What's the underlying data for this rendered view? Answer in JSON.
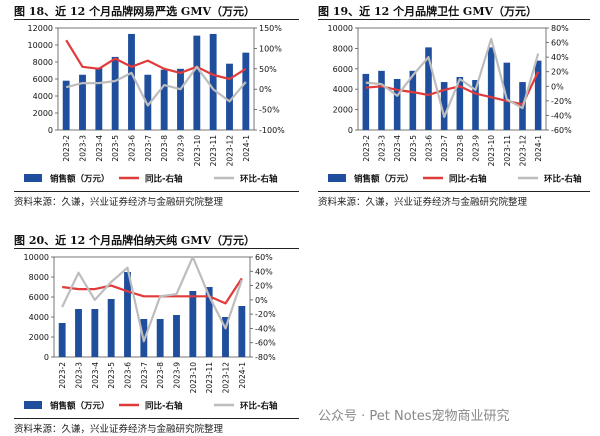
{
  "charts": [
    {
      "title": "图 18、近 12 个月品牌网易严选 GMV（万元）",
      "source": "资料来源：久谦，兴业证券经济与金融研究院整理"
    },
    {
      "title": "图 19、近 12 个月品牌卫仕 GMV（万元）",
      "source": "资料来源：久谦，兴业证券经济与金融研究院整理"
    },
    {
      "title": "图 20、近 12 个月品牌伯纳天纯 GMV（万元）",
      "source": "资料来源：久谦，兴业证券经济与金融研究院整理"
    }
  ],
  "watermark": "公众号 · Pet Notes宠物商业研究",
  "chart_data": [
    {
      "type": "bar",
      "categories": [
        "2023-2",
        "2023-3",
        "2023-4",
        "2023-5",
        "2023-6",
        "2023-7",
        "2023-8",
        "2023-9",
        "2023-10",
        "2023-11",
        "2023-12",
        "2024-1"
      ],
      "series": [
        {
          "name": "销售额（万元）",
          "axis": "left",
          "kind": "bar",
          "color": "#1f4f9c",
          "values": [
            5800,
            6500,
            7300,
            8600,
            11300,
            6500,
            7100,
            7200,
            11100,
            11300,
            7800,
            9100
          ]
        },
        {
          "name": "同比-右轴",
          "axis": "right",
          "kind": "line",
          "color": "#e03a3a",
          "values": [
            120,
            55,
            50,
            75,
            55,
            70,
            50,
            40,
            55,
            35,
            25,
            50
          ]
        },
        {
          "name": "环比-右轴",
          "axis": "right",
          "kind": "line",
          "color": "#bdbdbd",
          "values": [
            5,
            15,
            15,
            20,
            40,
            -40,
            10,
            0,
            55,
            0,
            -30,
            18
          ]
        }
      ],
      "yleft": {
        "min": 0,
        "max": 12000,
        "step": 2000,
        "ticks": [
          "0",
          "2000",
          "4000",
          "6000",
          "8000",
          "10000",
          "12000"
        ]
      },
      "yright": {
        "min": -100,
        "max": 150,
        "step": 50,
        "ticks": [
          "-100%",
          "-50%",
          "0%",
          "50%",
          "100%",
          "150%"
        ]
      },
      "legend": "bottom"
    },
    {
      "type": "bar",
      "categories": [
        "2023-2",
        "2023-3",
        "2023-4",
        "2023-5",
        "2023-6",
        "2023-7",
        "2023-8",
        "2023-9",
        "2023-10",
        "2023-11",
        "2023-12",
        "2024-1"
      ],
      "series": [
        {
          "name": "销售额（万元）",
          "axis": "left",
          "kind": "bar",
          "color": "#1f4f9c",
          "values": [
            5500,
            5800,
            5000,
            5800,
            8100,
            4700,
            5200,
            4900,
            8100,
            6600,
            4700,
            6800
          ]
        },
        {
          "name": "同比-右轴",
          "axis": "right",
          "kind": "line",
          "color": "#e03a3a",
          "values": [
            -2,
            0,
            -5,
            -8,
            -12,
            -5,
            0,
            -10,
            -15,
            -20,
            -25,
            20
          ]
        },
        {
          "name": "环比-右轴",
          "axis": "right",
          "kind": "line",
          "color": "#bdbdbd",
          "values": [
            5,
            3,
            -13,
            15,
            40,
            -42,
            10,
            -5,
            65,
            -18,
            -30,
            45
          ]
        }
      ],
      "yleft": {
        "min": 0,
        "max": 10000,
        "step": 2000,
        "ticks": [
          "0",
          "2000",
          "4000",
          "6000",
          "8000",
          "10000"
        ]
      },
      "yright": {
        "min": -60,
        "max": 80,
        "step": 20,
        "ticks": [
          "-60%",
          "-40%",
          "-20%",
          "0%",
          "20%",
          "40%",
          "60%",
          "80%"
        ]
      },
      "legend": "bottom"
    },
    {
      "type": "bar",
      "categories": [
        "2023-2",
        "2023-3",
        "2023-4",
        "2023-5",
        "2023-6",
        "2023-7",
        "2023-8",
        "2023-9",
        "2023-10",
        "2023-11",
        "2023-12",
        "2024-1"
      ],
      "series": [
        {
          "name": "销售额（万元）",
          "axis": "left",
          "kind": "bar",
          "color": "#1f4f9c",
          "values": [
            3400,
            4800,
            4800,
            5800,
            8500,
            3800,
            3800,
            4200,
            6600,
            7000,
            4000,
            5100
          ]
        },
        {
          "name": "同比-右轴",
          "axis": "right",
          "kind": "line",
          "color": "#e03a3a",
          "values": [
            18,
            15,
            15,
            20,
            12,
            5,
            5,
            5,
            5,
            5,
            -5,
            30
          ]
        },
        {
          "name": "环比-右轴",
          "axis": "right",
          "kind": "line",
          "color": "#bdbdbd",
          "values": [
            -10,
            38,
            0,
            25,
            45,
            -58,
            5,
            8,
            60,
            5,
            -40,
            28
          ]
        }
      ],
      "yleft": {
        "min": 0,
        "max": 10000,
        "step": 2000,
        "ticks": [
          "0",
          "2000",
          "4000",
          "6000",
          "8000",
          "10000"
        ]
      },
      "yright": {
        "min": -80,
        "max": 60,
        "step": 20,
        "ticks": [
          "-80%",
          "-60%",
          "-40%",
          "-20%",
          "0%",
          "20%",
          "40%",
          "60%"
        ]
      },
      "legend": "bottom"
    }
  ]
}
